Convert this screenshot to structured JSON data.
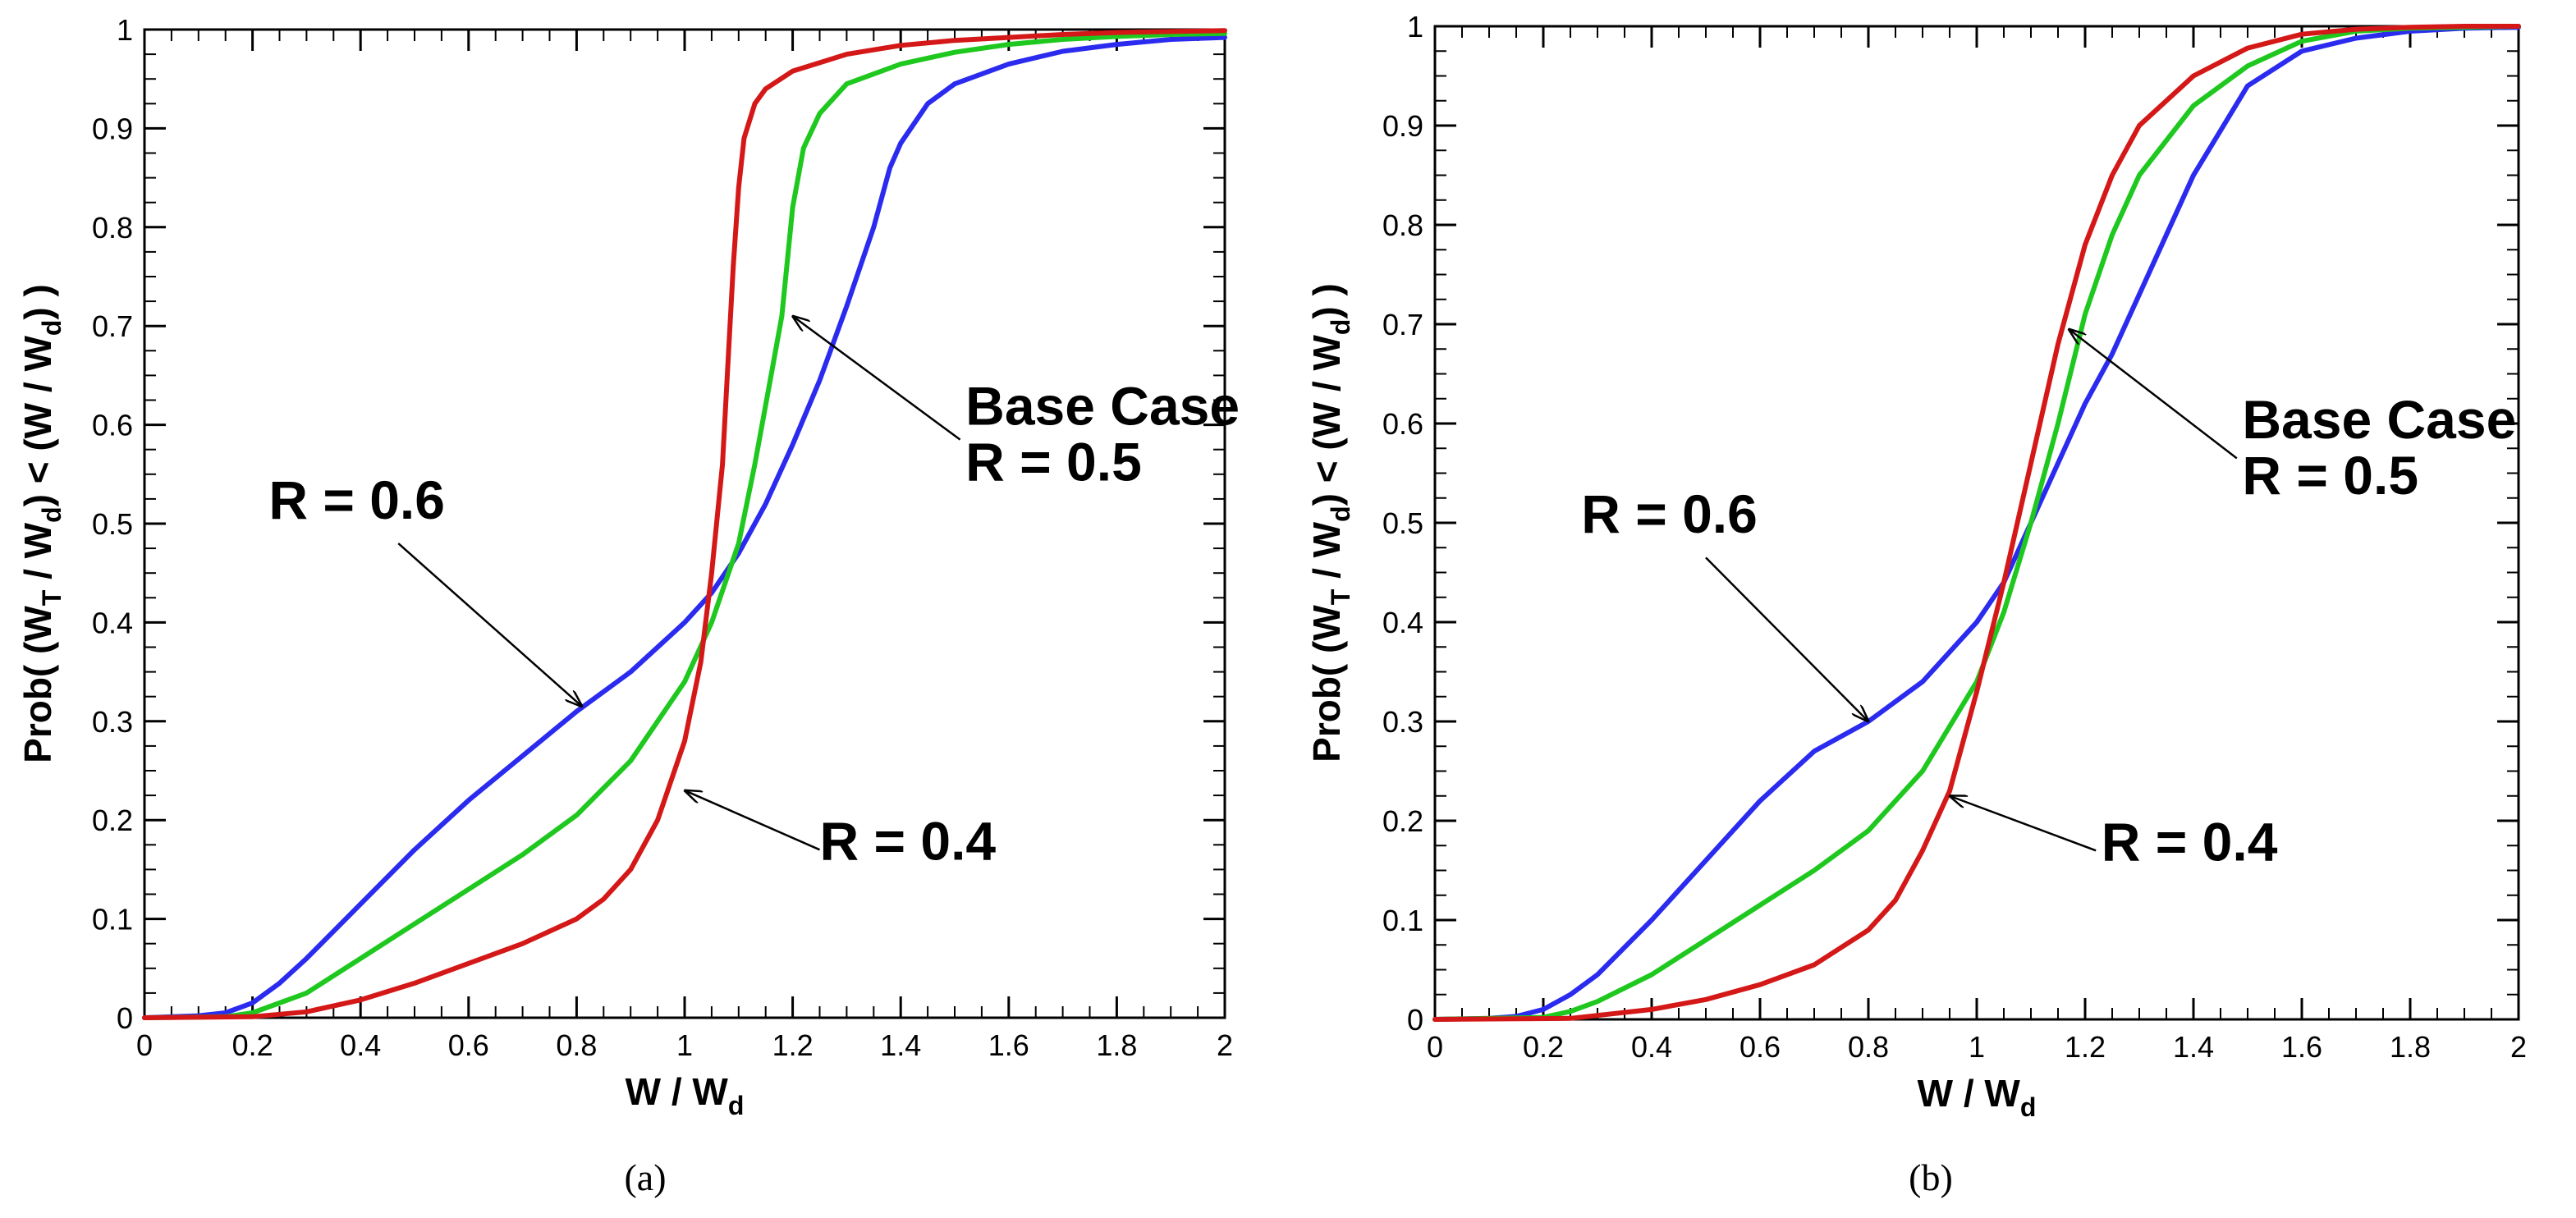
{
  "chart_data": [
    {
      "type": "line",
      "panel": "a",
      "caption": "(a)",
      "title": "",
      "xlabel": {
        "prefix": "W / W",
        "sub": "d"
      },
      "ylabel": {
        "p1": "Prob(  (W",
        "s1": "T",
        "p2": " / W",
        "s2": "d",
        "p3": ") < (W / W",
        "s3": "d",
        "p4": ") )"
      },
      "xlim": [
        0,
        2
      ],
      "ylim": [
        0,
        1
      ],
      "xticks": [
        0,
        0.2,
        0.4,
        0.6,
        0.8,
        1,
        1.2,
        1.4,
        1.6,
        1.8,
        2
      ],
      "xtick_labels": [
        "0",
        "0.2",
        "0.4",
        "0.6",
        "0.8",
        "1",
        "1.2",
        "1.4",
        "1.6",
        "1.8",
        "2"
      ],
      "yticks": [
        0,
        0.1,
        0.2,
        0.3,
        0.4,
        0.5,
        0.6,
        0.7,
        0.8,
        0.9,
        1
      ],
      "ytick_labels": [
        "0",
        "0.1",
        "0.2",
        "0.3",
        "0.4",
        "0.5",
        "0.6",
        "0.7",
        "0.8",
        "0.9",
        "1"
      ],
      "series": [
        {
          "name": "R = 0.6",
          "color": "#2b2bf0",
          "x": [
            0,
            0.1,
            0.15,
            0.2,
            0.25,
            0.3,
            0.4,
            0.5,
            0.6,
            0.7,
            0.8,
            0.9,
            1.0,
            1.05,
            1.1,
            1.15,
            1.2,
            1.25,
            1.3,
            1.35,
            1.38,
            1.4,
            1.45,
            1.5,
            1.6,
            1.7,
            1.8,
            1.9,
            2.0
          ],
          "y": [
            0,
            0.002,
            0.005,
            0.015,
            0.035,
            0.06,
            0.115,
            0.17,
            0.22,
            0.265,
            0.31,
            0.35,
            0.4,
            0.43,
            0.47,
            0.52,
            0.58,
            0.645,
            0.72,
            0.8,
            0.86,
            0.885,
            0.925,
            0.945,
            0.965,
            0.978,
            0.985,
            0.99,
            0.992
          ]
        },
        {
          "name": "Base Case R = 0.5",
          "color": "#1ec81e",
          "x": [
            0,
            0.15,
            0.2,
            0.3,
            0.4,
            0.5,
            0.6,
            0.7,
            0.8,
            0.9,
            1.0,
            1.05,
            1.1,
            1.13,
            1.16,
            1.18,
            1.2,
            1.22,
            1.25,
            1.3,
            1.4,
            1.5,
            1.6,
            1.7,
            1.8,
            1.9,
            2.0
          ],
          "y": [
            0,
            0.001,
            0.005,
            0.025,
            0.06,
            0.095,
            0.13,
            0.165,
            0.205,
            0.26,
            0.34,
            0.4,
            0.48,
            0.56,
            0.65,
            0.71,
            0.82,
            0.88,
            0.915,
            0.945,
            0.965,
            0.977,
            0.985,
            0.99,
            0.993,
            0.995,
            0.996
          ]
        },
        {
          "name": "R = 0.4",
          "color": "#d41818",
          "x": [
            0,
            0.2,
            0.3,
            0.4,
            0.5,
            0.6,
            0.7,
            0.8,
            0.85,
            0.9,
            0.95,
            1.0,
            1.03,
            1.05,
            1.07,
            1.08,
            1.09,
            1.1,
            1.11,
            1.13,
            1.15,
            1.2,
            1.3,
            1.4,
            1.5,
            1.6,
            1.7,
            1.8,
            1.9,
            2.0
          ],
          "y": [
            0,
            0.001,
            0.006,
            0.018,
            0.035,
            0.055,
            0.075,
            0.1,
            0.12,
            0.15,
            0.2,
            0.28,
            0.36,
            0.45,
            0.56,
            0.66,
            0.76,
            0.84,
            0.89,
            0.925,
            0.94,
            0.958,
            0.975,
            0.984,
            0.989,
            0.992,
            0.995,
            0.997,
            0.998,
            0.999
          ]
        }
      ],
      "annotations": [
        {
          "lines": [
            "R = 0.6"
          ],
          "target_x": 0.81,
          "target_y": 0.315,
          "from_x": 0.47,
          "from_y": 0.48,
          "text_x": 0.23,
          "text_y": 0.505
        },
        {
          "lines": [
            "Base Case",
            "R = 0.5"
          ],
          "target_x": 1.2,
          "target_y": 0.71,
          "from_x": 1.51,
          "from_y": 0.585,
          "text_x": 1.52,
          "text_y": 0.6
        },
        {
          "lines": [
            "R = 0.4"
          ],
          "target_x": 1.0,
          "target_y": 0.23,
          "from_x": 1.25,
          "from_y": 0.17,
          "text_x": 1.25,
          "text_y": 0.16
        }
      ]
    },
    {
      "type": "line",
      "panel": "b",
      "caption": "(b)",
      "title": "",
      "xlabel": {
        "prefix": "W / W",
        "sub": "d"
      },
      "ylabel": {
        "p1": "Prob(  (W",
        "s1": "T",
        "p2": " / W",
        "s2": "d",
        "p3": ") < (W / W",
        "s3": "d",
        "p4": ") )"
      },
      "xlim": [
        0,
        2
      ],
      "ylim": [
        0,
        1
      ],
      "xticks": [
        0,
        0.2,
        0.4,
        0.6,
        0.8,
        1,
        1.2,
        1.4,
        1.6,
        1.8,
        2
      ],
      "xtick_labels": [
        "0",
        "0.2",
        "0.4",
        "0.6",
        "0.8",
        "1",
        "1.2",
        "1.4",
        "1.6",
        "1.8",
        "2"
      ],
      "yticks": [
        0,
        0.1,
        0.2,
        0.3,
        0.4,
        0.5,
        0.6,
        0.7,
        0.8,
        0.9,
        1
      ],
      "ytick_labels": [
        "0",
        "0.1",
        "0.2",
        "0.3",
        "0.4",
        "0.5",
        "0.6",
        "0.7",
        "0.8",
        "0.9",
        "1"
      ],
      "series": [
        {
          "name": "R = 0.6",
          "color": "#2b2bf0",
          "x": [
            0,
            0.1,
            0.15,
            0.2,
            0.25,
            0.3,
            0.4,
            0.5,
            0.6,
            0.7,
            0.8,
            0.9,
            1.0,
            1.05,
            1.1,
            1.15,
            1.2,
            1.25,
            1.3,
            1.4,
            1.5,
            1.6,
            1.7,
            1.8,
            1.9,
            2.0
          ],
          "y": [
            0,
            0.001,
            0.003,
            0.01,
            0.025,
            0.045,
            0.1,
            0.16,
            0.22,
            0.27,
            0.3,
            0.34,
            0.4,
            0.44,
            0.5,
            0.56,
            0.62,
            0.67,
            0.73,
            0.85,
            0.94,
            0.975,
            0.988,
            0.995,
            0.998,
            0.999
          ]
        },
        {
          "name": "Base Case R = 0.5",
          "color": "#1ec81e",
          "x": [
            0,
            0.2,
            0.25,
            0.3,
            0.4,
            0.5,
            0.6,
            0.7,
            0.8,
            0.9,
            1.0,
            1.05,
            1.1,
            1.15,
            1.2,
            1.25,
            1.3,
            1.4,
            1.5,
            1.6,
            1.7,
            1.8,
            1.9,
            2.0
          ],
          "y": [
            0,
            0.002,
            0.008,
            0.018,
            0.045,
            0.08,
            0.115,
            0.15,
            0.19,
            0.25,
            0.34,
            0.41,
            0.5,
            0.6,
            0.71,
            0.79,
            0.85,
            0.92,
            0.96,
            0.985,
            0.995,
            0.998,
            0.999,
            1.0
          ]
        },
        {
          "name": "R = 0.4",
          "color": "#d41818",
          "x": [
            0,
            0.25,
            0.3,
            0.4,
            0.5,
            0.6,
            0.7,
            0.8,
            0.85,
            0.9,
            0.95,
            1.0,
            1.05,
            1.1,
            1.15,
            1.2,
            1.25,
            1.3,
            1.4,
            1.5,
            1.6,
            1.7,
            1.8,
            1.9,
            2.0
          ],
          "y": [
            0,
            0.001,
            0.004,
            0.01,
            0.02,
            0.035,
            0.055,
            0.09,
            0.12,
            0.17,
            0.23,
            0.33,
            0.44,
            0.56,
            0.68,
            0.78,
            0.85,
            0.9,
            0.95,
            0.978,
            0.992,
            0.997,
            0.999,
            1.0,
            1.0
          ]
        }
      ],
      "annotations": [
        {
          "lines": [
            "R = 0.6"
          ],
          "target_x": 0.8,
          "target_y": 0.3,
          "from_x": 0.5,
          "from_y": 0.465,
          "text_x": 0.27,
          "text_y": 0.49
        },
        {
          "lines": [
            "Base Case",
            "R = 0.5"
          ],
          "target_x": 1.17,
          "target_y": 0.695,
          "from_x": 1.48,
          "from_y": 0.565,
          "text_x": 1.49,
          "text_y": 0.585
        },
        {
          "lines": [
            "R = 0.4"
          ],
          "target_x": 0.95,
          "target_y": 0.225,
          "from_x": 1.22,
          "from_y": 0.17,
          "text_x": 1.23,
          "text_y": 0.16
        }
      ]
    }
  ]
}
